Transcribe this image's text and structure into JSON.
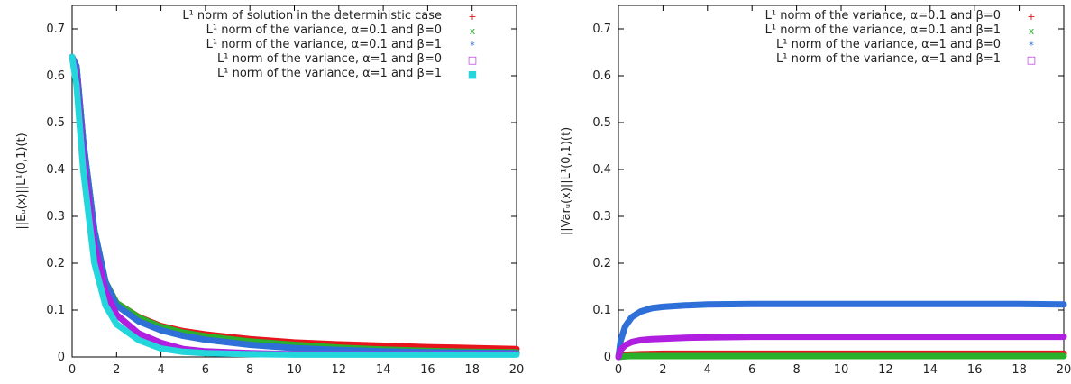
{
  "chart_data": [
    {
      "type": "line",
      "ylabel": "||Eᵤ(x)||L¹(0,1)(t)",
      "xlim": [
        0,
        20
      ],
      "ylim": [
        0,
        0.75
      ],
      "xticks": [
        "0",
        "2",
        "4",
        "6",
        "8",
        "10",
        "12",
        "14",
        "16",
        "18",
        "20"
      ],
      "yticks": [
        "0",
        "0.1",
        "0.2",
        "0.3",
        "0.4",
        "0.5",
        "0.6",
        "0.7"
      ],
      "legend_position": "top-right",
      "series": [
        {
          "name": "L¹ norm of solution in the deterministic case",
          "marker": "+",
          "color": "#e8141c",
          "x": [
            0,
            0.2,
            0.5,
            1,
            1.5,
            2,
            3,
            4,
            5,
            6,
            8,
            10,
            12,
            14,
            16,
            18,
            20
          ],
          "y": [
            0.64,
            0.62,
            0.46,
            0.27,
            0.16,
            0.115,
            0.085,
            0.066,
            0.055,
            0.048,
            0.038,
            0.031,
            0.027,
            0.024,
            0.021,
            0.019,
            0.017
          ]
        },
        {
          "name": "L¹ norm of the variance, α=0.1 and β=0",
          "marker": "x",
          "color": "#2ab02a",
          "x": [
            0,
            0.2,
            0.5,
            1,
            1.5,
            2,
            3,
            4,
            5,
            6,
            8,
            10,
            12,
            14,
            16,
            18,
            20
          ],
          "y": [
            0.64,
            0.62,
            0.46,
            0.27,
            0.16,
            0.115,
            0.084,
            0.064,
            0.052,
            0.044,
            0.033,
            0.026,
            0.02,
            0.016,
            0.013,
            0.011,
            0.01
          ]
        },
        {
          "name": "L¹ norm of the variance, α=0.1 and β=1",
          "marker": "*",
          "color": "#2f6fd8",
          "x": [
            0,
            0.2,
            0.5,
            1,
            1.5,
            2,
            3,
            4,
            5,
            6,
            8,
            10,
            12,
            14,
            16,
            18,
            20
          ],
          "y": [
            0.64,
            0.62,
            0.46,
            0.27,
            0.16,
            0.11,
            0.076,
            0.057,
            0.045,
            0.037,
            0.026,
            0.019,
            0.015,
            0.012,
            0.01,
            0.009,
            0.008
          ]
        },
        {
          "name": "L¹ norm of the variance, α=1 and β=0",
          "marker": "□",
          "color": "#b01ee0",
          "x": [
            0,
            0.2,
            0.5,
            1,
            1.5,
            2,
            3,
            4,
            5,
            6,
            8,
            10,
            12,
            14,
            16,
            18,
            20
          ],
          "y": [
            0.64,
            0.6,
            0.43,
            0.24,
            0.14,
            0.09,
            0.05,
            0.03,
            0.017,
            0.012,
            0.008,
            0.006,
            0.006,
            0.006,
            0.006,
            0.006,
            0.006
          ]
        },
        {
          "name": "L¹ norm of the variance, α=1 and β=1",
          "marker": "■",
          "color": "#22d6dc",
          "x": [
            0,
            0.2,
            0.5,
            1,
            1.5,
            2,
            3,
            4,
            5,
            6,
            8,
            10,
            12,
            14,
            16,
            18,
            20
          ],
          "y": [
            0.64,
            0.58,
            0.4,
            0.2,
            0.11,
            0.07,
            0.036,
            0.018,
            0.011,
            0.008,
            0.006,
            0.005,
            0.005,
            0.005,
            0.005,
            0.005,
            0.005
          ]
        }
      ]
    },
    {
      "type": "line",
      "ylabel": "||Varᵤ(x)||L¹(0,1)(t)",
      "xlim": [
        0,
        20
      ],
      "ylim": [
        0,
        0.75
      ],
      "xticks": [
        "0",
        "2",
        "4",
        "6",
        "8",
        "10",
        "12",
        "14",
        "16",
        "18",
        "20"
      ],
      "yticks": [
        "0",
        "0.1",
        "0.2",
        "0.3",
        "0.4",
        "0.5",
        "0.6",
        "0.7"
      ],
      "legend_position": "top-right",
      "series": [
        {
          "name": "L¹ norm of the variance,  α=0.1 and β=0",
          "marker": "+",
          "color": "#e8141c",
          "x": [
            0,
            0.2,
            0.5,
            1,
            2,
            4,
            6,
            8,
            10,
            12,
            14,
            16,
            18,
            20
          ],
          "y": [
            0,
            0.003,
            0.005,
            0.006,
            0.007,
            0.007,
            0.007,
            0.007,
            0.007,
            0.007,
            0.007,
            0.007,
            0.007,
            0.007
          ]
        },
        {
          "name": "L¹ norm of the variance,  α=0.1 and β=1",
          "marker": "x",
          "color": "#2ab02a",
          "x": [
            0,
            0.2,
            0.5,
            1,
            2,
            4,
            6,
            8,
            10,
            12,
            14,
            16,
            18,
            20
          ],
          "y": [
            0,
            0.001,
            0.002,
            0.002,
            0.002,
            0.002,
            0.002,
            0.002,
            0.002,
            0.002,
            0.002,
            0.002,
            0.002,
            0.002
          ]
        },
        {
          "name": "L¹ norm of the variance,  α=1 and β=0",
          "marker": "*",
          "color": "#2f6fd8",
          "x": [
            0,
            0.1,
            0.3,
            0.6,
            1,
            1.5,
            2,
            3,
            4,
            6,
            8,
            10,
            12,
            14,
            16,
            18,
            20
          ],
          "y": [
            0,
            0.035,
            0.065,
            0.085,
            0.097,
            0.104,
            0.107,
            0.11,
            0.112,
            0.113,
            0.113,
            0.113,
            0.113,
            0.113,
            0.113,
            0.113,
            0.112
          ]
        },
        {
          "name": "L¹ norm of the variance,  α=1 and β=1",
          "marker": "□",
          "color": "#b01ee0",
          "x": [
            0,
            0.1,
            0.3,
            0.6,
            1,
            1.5,
            2,
            3,
            4,
            6,
            8,
            10,
            12,
            14,
            16,
            18,
            20
          ],
          "y": [
            0,
            0.015,
            0.025,
            0.032,
            0.036,
            0.038,
            0.039,
            0.041,
            0.042,
            0.043,
            0.043,
            0.043,
            0.043,
            0.043,
            0.043,
            0.043,
            0.043
          ]
        }
      ]
    }
  ]
}
